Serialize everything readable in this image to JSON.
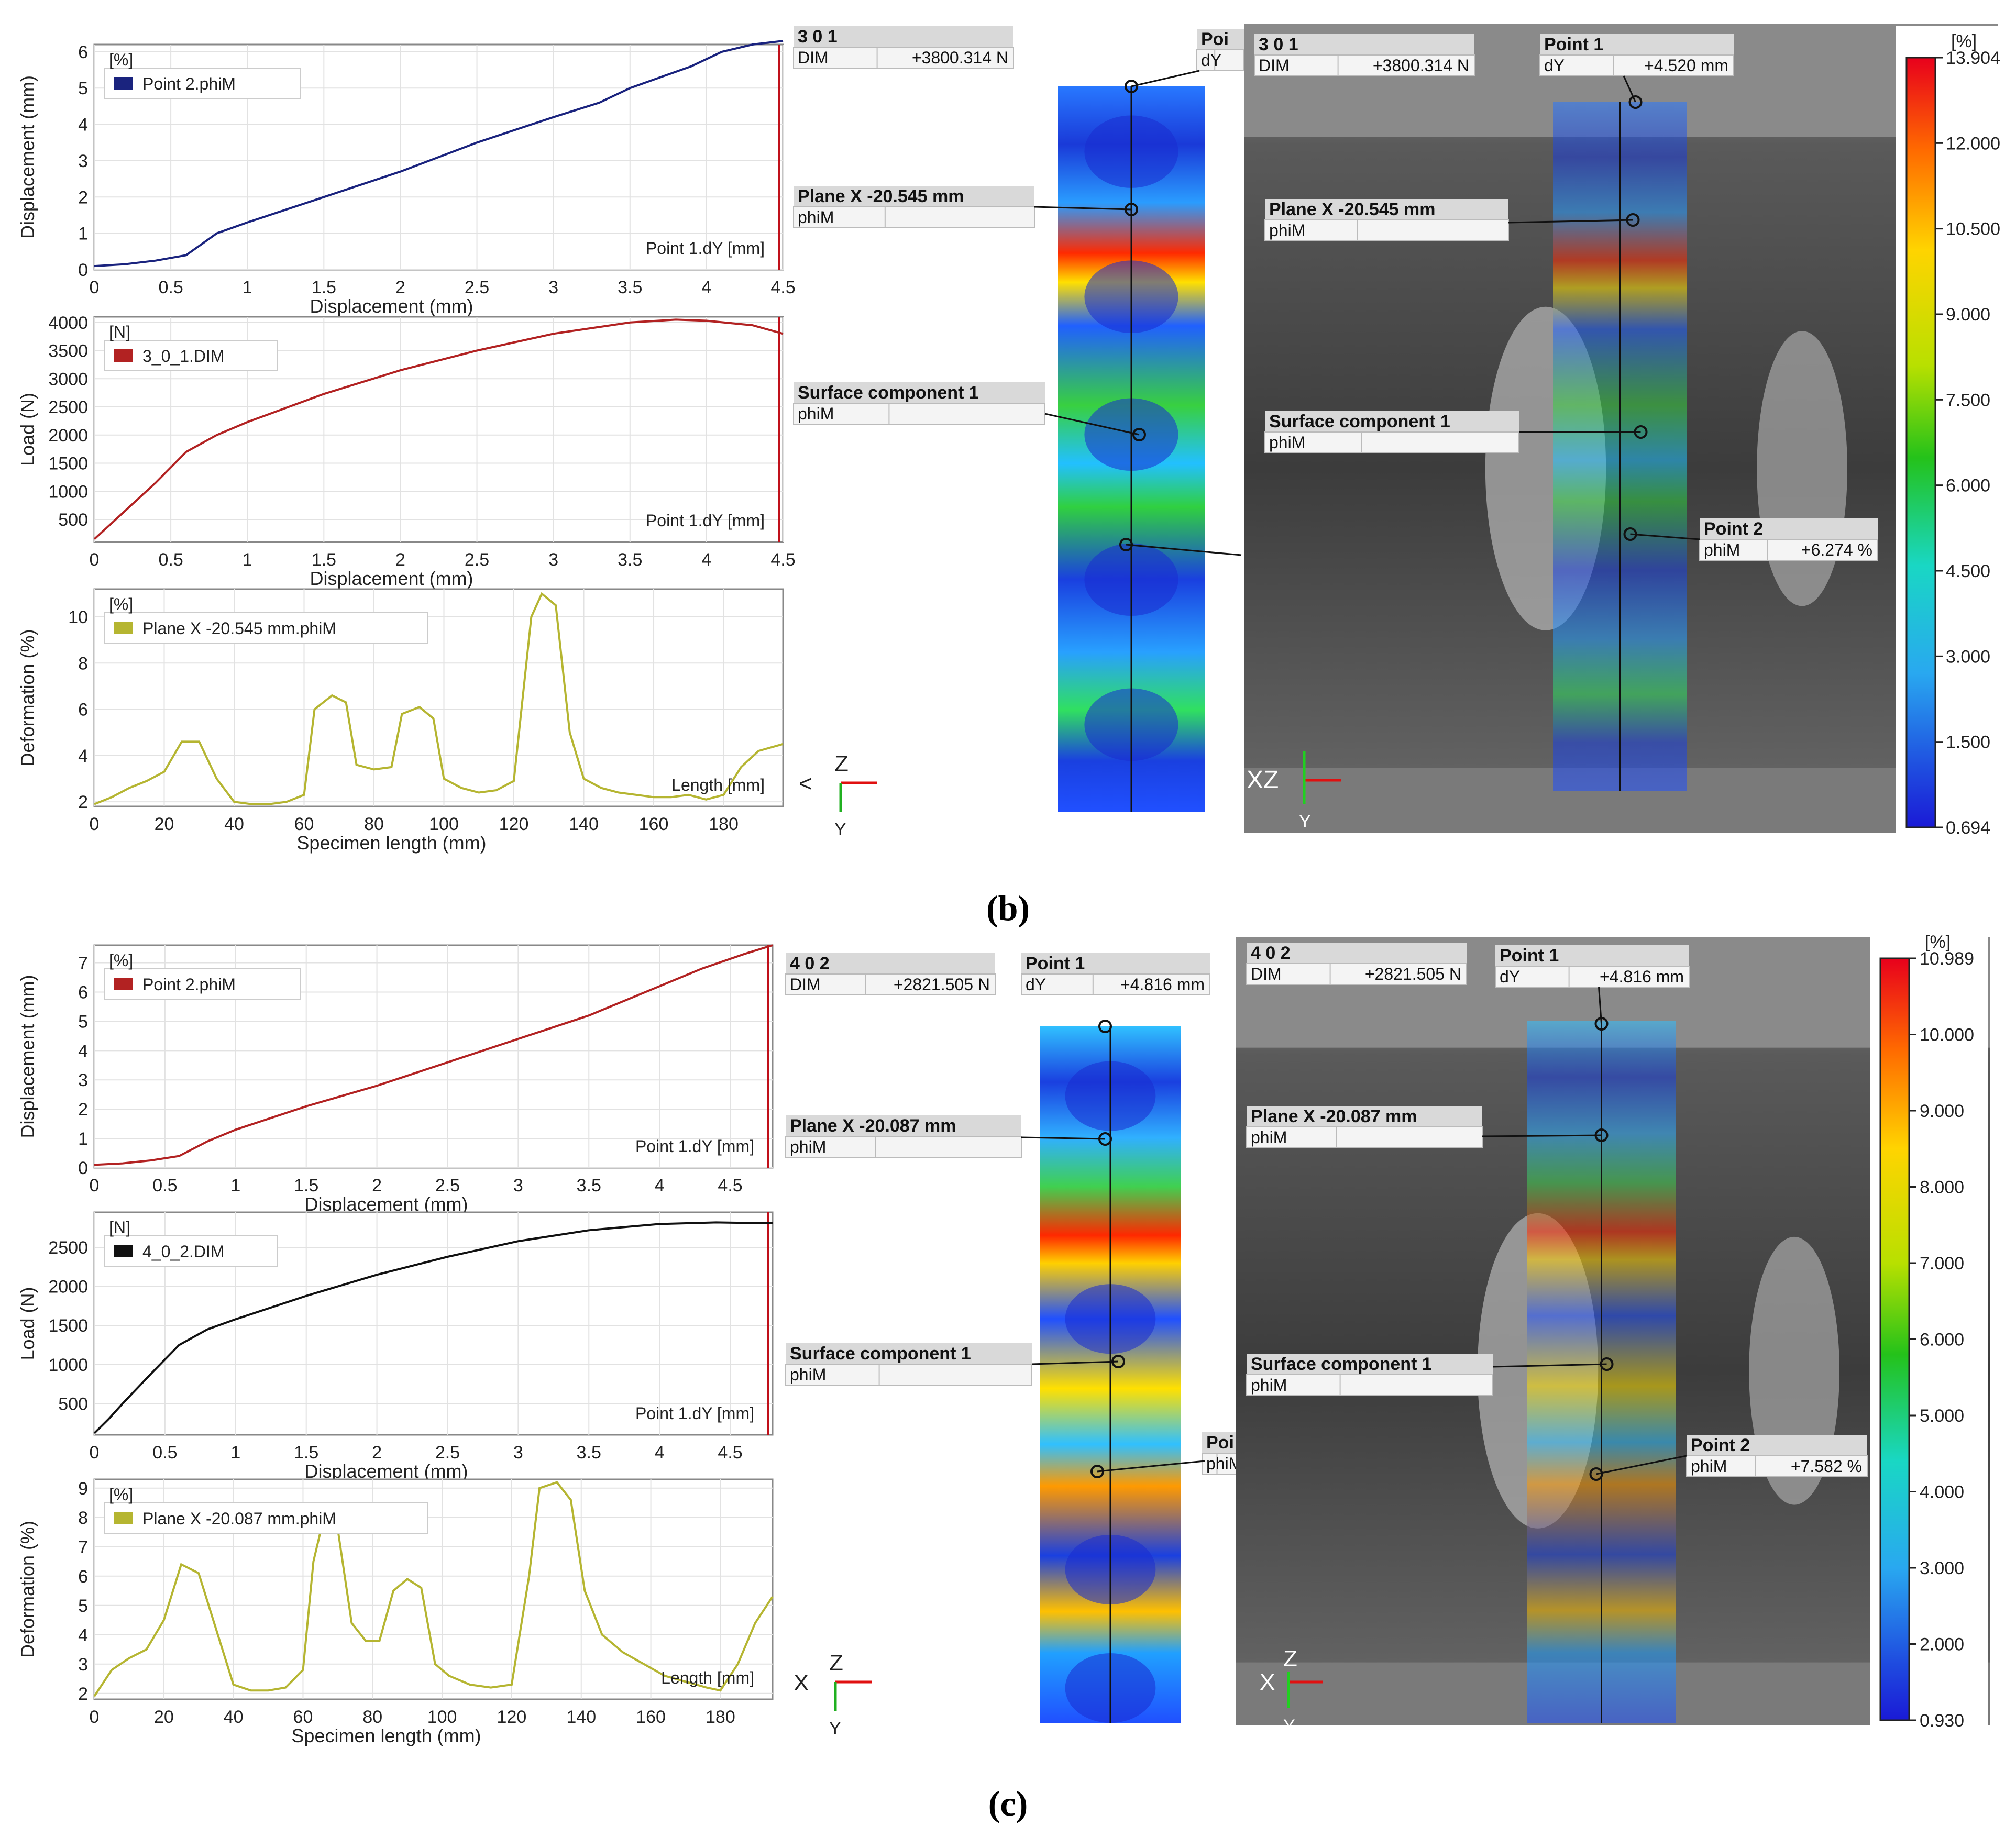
{
  "captions": {
    "b": "(b)",
    "c": "(c)"
  },
  "panels": [
    {
      "id": "b",
      "charts": [
        {
          "type": "line",
          "box": "[%]",
          "legend": "Point 2.phiM",
          "color": "#1a237e",
          "inner_label": "Point 1.dY [mm]",
          "xlabel": "Displacement (mm)",
          "ylabel": "Displacement (mm)",
          "xlim": [
            0,
            4.5
          ],
          "ylim": [
            0,
            6.2
          ],
          "xticks": [
            0,
            0.5,
            1,
            1.5,
            2,
            2.5,
            3,
            3.5,
            4,
            4.5
          ],
          "yticks": [
            0,
            1,
            2,
            3,
            4,
            5,
            6
          ],
          "x": [
            0,
            0.2,
            0.4,
            0.6,
            0.7,
            0.8,
            1.0,
            1.5,
            2.0,
            2.5,
            3.0,
            3.3,
            3.5,
            3.7,
            3.9,
            4.1,
            4.3,
            4.5
          ],
          "y": [
            0.1,
            0.15,
            0.25,
            0.4,
            0.7,
            1.0,
            1.3,
            2.0,
            2.7,
            3.5,
            4.2,
            4.6,
            5.0,
            5.3,
            5.6,
            6.0,
            6.2,
            6.3
          ]
        },
        {
          "type": "line",
          "box": "[N]",
          "legend": "3_0_1.DIM",
          "color": "#b22222",
          "inner_label": "Point 1.dY [mm]",
          "xlabel": "Displacement (mm)",
          "ylabel": "Load (N)",
          "xlim": [
            0,
            4.5
          ],
          "ylim": [
            100,
            4100
          ],
          "xticks": [
            0,
            0.5,
            1,
            1.5,
            2,
            2.5,
            3,
            3.5,
            4,
            4.5
          ],
          "yticks": [
            500,
            1000,
            1500,
            2000,
            2500,
            3000,
            3500,
            4000
          ],
          "x": [
            0,
            0.1,
            0.2,
            0.4,
            0.6,
            0.8,
            1.0,
            1.5,
            2.0,
            2.5,
            3.0,
            3.5,
            3.8,
            4.0,
            4.3,
            4.5
          ],
          "y": [
            150,
            400,
            650,
            1150,
            1700,
            2000,
            2230,
            2730,
            3150,
            3500,
            3800,
            4000,
            4050,
            4030,
            3950,
            3800
          ]
        },
        {
          "type": "line",
          "box": "[%]",
          "legend": "Plane X -20.545 mm.phiM",
          "color": "#b5b531",
          "inner_label": "Length [mm]",
          "xlabel": "Specimen length (mm)",
          "ylabel": "Deformation (%)",
          "xlim": [
            0,
            197
          ],
          "ylim": [
            1.8,
            11.2
          ],
          "xticks": [
            0,
            20,
            40,
            60,
            80,
            100,
            120,
            140,
            160,
            180
          ],
          "yticks": [
            2,
            4,
            6,
            8,
            10
          ],
          "x": [
            0,
            5,
            10,
            15,
            20,
            25,
            30,
            35,
            40,
            45,
            50,
            55,
            60,
            63,
            68,
            72,
            75,
            80,
            85,
            88,
            93,
            97,
            100,
            105,
            110,
            115,
            120,
            125,
            128,
            132,
            136,
            140,
            145,
            150,
            155,
            160,
            165,
            170,
            175,
            180,
            185,
            190,
            197
          ],
          "y": [
            1.9,
            2.2,
            2.6,
            2.9,
            3.3,
            4.6,
            4.6,
            3.0,
            2.0,
            1.9,
            1.9,
            2.0,
            2.3,
            6.0,
            6.6,
            6.3,
            3.6,
            3.4,
            3.5,
            5.8,
            6.1,
            5.6,
            3.0,
            2.6,
            2.4,
            2.5,
            2.9,
            10.0,
            11.0,
            10.5,
            5.0,
            3.0,
            2.6,
            2.4,
            2.3,
            2.2,
            2.2,
            2.3,
            2.1,
            2.3,
            3.5,
            4.2,
            4.5
          ]
        }
      ],
      "axes_icon": {
        "top": "Z",
        "left": "<",
        "bottom": "Y"
      },
      "middle_labels": {
        "header1": "3 0 1",
        "header2_key": "DIM",
        "header2_val": "+3800.314 N",
        "plane_title": "Plane X -20.545 mm",
        "plane_key": "phiM",
        "surface_title": "Surface component 1",
        "surface_key": "phiM",
        "point_partial": "Poi",
        "point_partial_key": "dY"
      },
      "photo_labels": {
        "header1": "3 0 1",
        "header2_key": "DIM",
        "header2_val": "+3800.314 N",
        "point1_title": "Point 1",
        "point1_key": "dY",
        "point1_val": "+4.520 mm",
        "plane_title": "Plane X -20.545 mm",
        "plane_key": "phiM",
        "surface_title": "Surface component 1",
        "surface_key": "phiM",
        "point2_title": "Point 2",
        "point2_key": "phiM",
        "point2_val": "+6.274 %",
        "axes": "XZ",
        "axes_y": "Y"
      },
      "colorbar": {
        "unit": "[%]",
        "labels": [
          "13.904",
          "12.000",
          "10.500",
          "9.000",
          "7.500",
          "6.000",
          "4.500",
          "3.000",
          "1.500",
          "0.694"
        ]
      }
    },
    {
      "id": "c",
      "charts": [
        {
          "type": "line",
          "box": "[%]",
          "legend": "Point 2.phiM",
          "color": "#b22222",
          "inner_label": "Point 1.dY [mm]",
          "xlabel": "Displacement (mm)",
          "ylabel": "Displacement (mm)",
          "xlim": [
            0,
            4.8
          ],
          "ylim": [
            0,
            7.6
          ],
          "xticks": [
            0,
            0.5,
            1,
            1.5,
            2,
            2.5,
            3,
            3.5,
            4,
            4.5
          ],
          "yticks": [
            0,
            1,
            2,
            3,
            4,
            5,
            6,
            7
          ],
          "x": [
            0,
            0.2,
            0.4,
            0.6,
            0.8,
            1.0,
            1.5,
            2.0,
            2.5,
            3.0,
            3.5,
            4.0,
            4.3,
            4.6,
            4.8
          ],
          "y": [
            0.1,
            0.15,
            0.25,
            0.4,
            0.9,
            1.3,
            2.1,
            2.8,
            3.6,
            4.4,
            5.2,
            6.2,
            6.8,
            7.3,
            7.6
          ]
        },
        {
          "type": "line",
          "box": "[N]",
          "legend": "4_0_2.DIM",
          "color": "#111111",
          "inner_label": "Point 1.dY [mm]",
          "xlabel": "Displacement (mm)",
          "ylabel": "Load (N)",
          "xlim": [
            0,
            4.8
          ],
          "ylim": [
            100,
            2950
          ],
          "xticks": [
            0,
            0.5,
            1,
            1.5,
            2,
            2.5,
            3,
            3.5,
            4,
            4.5
          ],
          "yticks": [
            500,
            1000,
            1500,
            2000,
            2500
          ],
          "x": [
            0,
            0.1,
            0.2,
            0.4,
            0.6,
            0.8,
            1.0,
            1.5,
            2.0,
            2.5,
            3.0,
            3.5,
            4.0,
            4.4,
            4.8
          ],
          "y": [
            120,
            300,
            500,
            880,
            1250,
            1450,
            1580,
            1880,
            2150,
            2380,
            2580,
            2720,
            2800,
            2820,
            2810
          ]
        },
        {
          "type": "line",
          "box": "[%]",
          "legend": "Plane X -20.087 mm.phiM",
          "color": "#b5b531",
          "inner_label": "Length [mm]",
          "xlabel": "Specimen length (mm)",
          "ylabel": "Deformation (%)",
          "xlim": [
            0,
            195
          ],
          "ylim": [
            1.8,
            9.3
          ],
          "xticks": [
            0,
            20,
            40,
            60,
            80,
            100,
            120,
            140,
            160,
            180
          ],
          "yticks": [
            2,
            3,
            4,
            5,
            6,
            7,
            8,
            9
          ],
          "x": [
            0,
            5,
            10,
            15,
            20,
            25,
            30,
            35,
            40,
            45,
            50,
            55,
            60,
            63,
            66,
            70,
            74,
            78,
            82,
            86,
            90,
            94,
            98,
            102,
            108,
            114,
            120,
            125,
            128,
            133,
            137,
            141,
            146,
            152,
            158,
            164,
            170,
            176,
            180,
            185,
            190,
            195
          ],
          "y": [
            1.9,
            2.8,
            3.2,
            3.5,
            4.5,
            6.4,
            6.1,
            4.2,
            2.3,
            2.1,
            2.1,
            2.2,
            2.8,
            6.5,
            8.0,
            7.6,
            4.4,
            3.8,
            3.8,
            5.5,
            5.9,
            5.6,
            3.0,
            2.6,
            2.3,
            2.2,
            2.3,
            6.0,
            9.0,
            9.2,
            8.6,
            5.5,
            4.0,
            3.4,
            3.0,
            2.6,
            2.4,
            2.2,
            2.1,
            3.0,
            4.4,
            5.3
          ]
        }
      ],
      "axes_icon": {
        "top": "Z",
        "left": "X",
        "bottom": "Y"
      },
      "middle_labels": {
        "header1": "4 0 2",
        "header2_key": "DIM",
        "header2_val": "+2821.505 N",
        "point1_title": "Point 1",
        "point1_key": "dY",
        "point1_val": "+4.816 mm",
        "plane_title": "Plane X -20.087 mm",
        "plane_key": "phiM",
        "surface_title": "Surface component 1",
        "surface_key": "phiM",
        "point_partial": "Poi",
        "point_partial_key": "phiM"
      },
      "photo_labels": {
        "header1": "4 0 2",
        "header2_key": "DIM",
        "header2_val": "+2821.505 N",
        "point1_title": "Point 1",
        "point1_key": "dY",
        "point1_val": "+4.816 mm",
        "plane_title": "Plane X -20.087 mm",
        "plane_key": "phiM",
        "surface_title": "Surface component 1",
        "surface_key": "phiM",
        "point2_title": "Point 2",
        "point2_key": "phiM",
        "point2_val": "+7.582 %",
        "axes": "X",
        "axes_z": "Z",
        "axes_y": "Y"
      },
      "colorbar": {
        "unit": "[%]",
        "labels": [
          "10.989",
          "10.000",
          "9.000",
          "8.000",
          "7.000",
          "6.000",
          "5.000",
          "4.000",
          "3.000",
          "2.000",
          "0.930"
        ]
      }
    }
  ]
}
